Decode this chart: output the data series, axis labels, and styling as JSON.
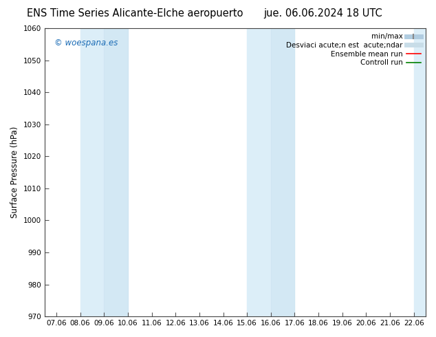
{
  "title_left": "ENS Time Series Alicante-Elche aeropuerto",
  "title_right": "jue. 06.06.2024 18 UTC",
  "ylabel": "Surface Pressure (hPa)",
  "ylim": [
    970,
    1060
  ],
  "yticks": [
    970,
    980,
    990,
    1000,
    1010,
    1020,
    1030,
    1040,
    1050,
    1060
  ],
  "xtick_labels": [
    "07.06",
    "08.06",
    "09.06",
    "10.06",
    "11.06",
    "12.06",
    "13.06",
    "14.06",
    "15.06",
    "16.06",
    "17.06",
    "18.06",
    "19.06",
    "20.06",
    "21.06",
    "22.06"
  ],
  "shade_color_dark": "#c5ddef",
  "shade_color_light": "#dceef8",
  "background_color": "#ffffff",
  "watermark": "© woespana.es",
  "watermark_color": "#1a6bb5",
  "title_fontsize": 10.5,
  "tick_fontsize": 7.5,
  "ylabel_fontsize": 8.5,
  "legend_fontsize": 7.5
}
